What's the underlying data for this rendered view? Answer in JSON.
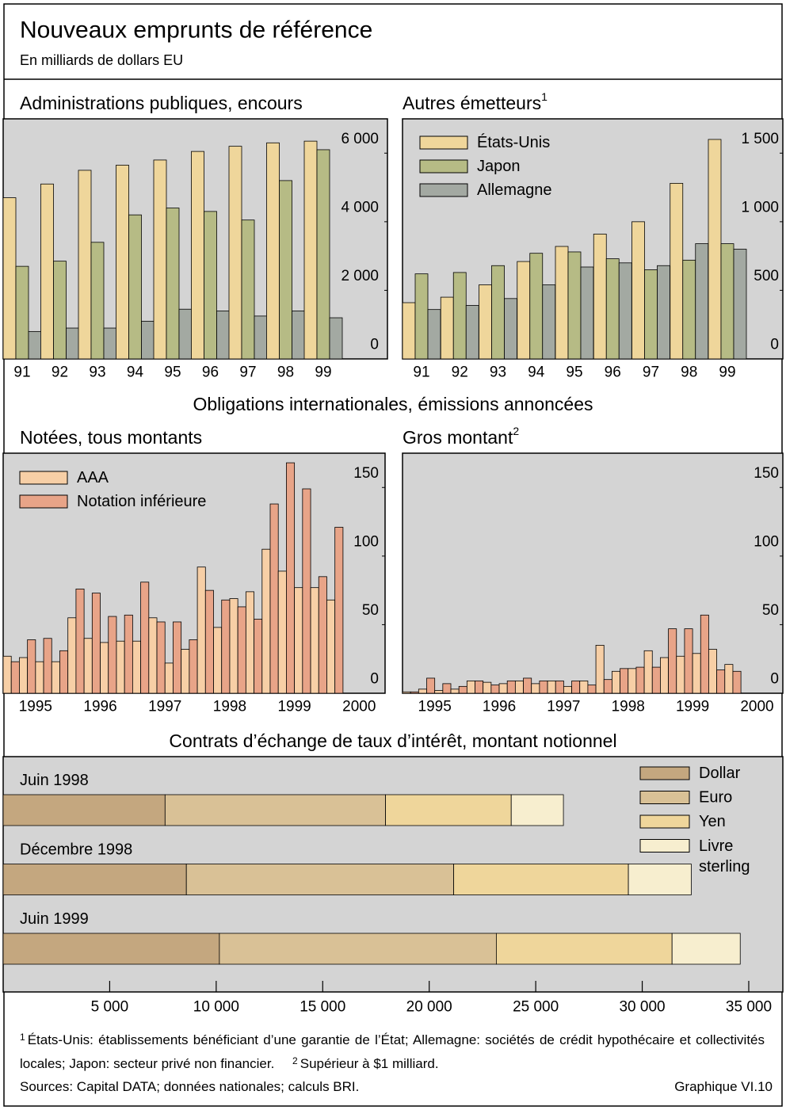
{
  "title": "Nouveaux emprunts de référence",
  "subtitle": "En milliards de dollars EU",
  "section_title": "Obligations internationales, émissions annoncées",
  "notes": [
    {
      "marker": "1",
      "text": "États-Unis: établissements bénéficiant d’une garantie de l’État; Allemagne: sociétés de crédit hypothécaire et collectivités locales; Japon: secteur privé non financier."
    },
    {
      "marker": "2",
      "text": "Supérieur à $1 milliard."
    }
  ],
  "source": "Sources: Capital DATA; données nationales; calculs BRI.",
  "figure_label": "Graphique VI.10",
  "chart_data": [
    {
      "type": "bar",
      "title": "Administrations publiques, encours",
      "categories": [
        "91",
        "92",
        "93",
        "94",
        "95",
        "96",
        "97",
        "98",
        "99"
      ],
      "series": [
        {
          "color": "#efd69b",
          "values": [
            4700,
            5100,
            5500,
            5650,
            5800,
            6050,
            6200,
            6300,
            6350
          ]
        },
        {
          "color": "#b6bb85",
          "values": [
            2700,
            2850,
            3400,
            4200,
            4400,
            4300,
            4050,
            5200,
            6100
          ]
        },
        {
          "color": "#a3a9a2",
          "values": [
            800,
            900,
            900,
            1100,
            1450,
            1400,
            1250,
            1400,
            1200
          ]
        }
      ],
      "ylim": [
        0,
        7000
      ],
      "yticks": [
        0,
        {
          "value": 2000,
          "label": "2 000"
        },
        {
          "value": 4000,
          "label": "4 000"
        },
        {
          "value": 6000,
          "label": "6 000"
        }
      ]
    },
    {
      "type": "bar",
      "title": "Autres émetteurs",
      "note_ref": "1",
      "categories": [
        "91",
        "92",
        "93",
        "94",
        "95",
        "96",
        "97",
        "98",
        "99"
      ],
      "series": [
        {
          "name": "États-Unis",
          "color": "#efd69b",
          "values": [
            410,
            450,
            540,
            710,
            820,
            910,
            1000,
            1280,
            1600
          ]
        },
        {
          "name": "Japon",
          "color": "#b6bb85",
          "values": [
            620,
            630,
            680,
            770,
            780,
            730,
            650,
            720,
            840
          ]
        },
        {
          "name": "Allemagne",
          "color": "#a3a9a2",
          "values": [
            360,
            390,
            440,
            540,
            670,
            700,
            680,
            840,
            800
          ]
        }
      ],
      "ylim": [
        0,
        1750
      ],
      "yticks": [
        0,
        500,
        {
          "value": 1000,
          "label": "1 000"
        },
        {
          "value": 1500,
          "label": "1 500"
        }
      ],
      "legend": "upper left"
    },
    {
      "type": "bar",
      "title": "Notées, tous montants",
      "x": [
        1995,
        1995.25,
        1995.5,
        1995.75,
        1996,
        1996.25,
        1996.5,
        1996.75,
        1997,
        1997.25,
        1997.5,
        1997.75,
        1998,
        1998.25,
        1998.5,
        1998.75,
        1999,
        1999.25,
        1999.5,
        1999.75,
        2000
      ],
      "series": [
        {
          "name": "AAA",
          "color": "#f7cfa6",
          "values": [
            27,
            26,
            23,
            23,
            55,
            40,
            37,
            38,
            38,
            55,
            22,
            32,
            92,
            48,
            69,
            74,
            105,
            89,
            77,
            77,
            68
          ]
        },
        {
          "name": "Notation inférieure",
          "color": "#e8a488",
          "values": [
            23,
            39,
            40,
            31,
            76,
            73,
            56,
            57,
            81,
            52,
            52,
            39,
            75,
            68,
            63,
            54,
            138,
            168,
            149,
            85,
            121
          ]
        }
      ],
      "xlim": [
        1995,
        2000.9
      ],
      "xticks": [
        {
          "value": 1995.5,
          "label": "1995"
        },
        {
          "value": 1996.5,
          "label": "1996"
        },
        {
          "value": 1997.5,
          "label": "1997"
        },
        {
          "value": 1998.5,
          "label": "1998"
        },
        {
          "value": 1999.5,
          "label": "1999"
        },
        {
          "value": 2000.5,
          "label": "2000"
        }
      ],
      "ylim": [
        0,
        175
      ],
      "yticks": [
        0,
        50,
        100,
        150
      ],
      "legend": "upper left"
    },
    {
      "type": "bar",
      "title": "Gros montant",
      "note_ref": "2",
      "x": [
        1995,
        1995.25,
        1995.5,
        1995.75,
        1996,
        1996.25,
        1996.5,
        1996.75,
        1997,
        1997.25,
        1997.5,
        1997.75,
        1998,
        1998.25,
        1998.5,
        1998.75,
        1999,
        1999.25,
        1999.5,
        1999.75,
        2000
      ],
      "series": [
        {
          "color": "#f7cfa6",
          "values": [
            1,
            3,
            2,
            3,
            9,
            8,
            7,
            9,
            7,
            9,
            5,
            9,
            35,
            16,
            18,
            31,
            26,
            27,
            29,
            32,
            21
          ]
        },
        {
          "color": "#e8a488",
          "values": [
            1,
            11,
            7,
            5,
            9,
            6,
            9,
            11,
            9,
            9,
            9,
            6,
            10,
            18,
            19,
            19,
            47,
            47,
            57,
            17,
            16
          ]
        }
      ],
      "xlim": [
        1995,
        2000.9
      ],
      "xticks": [
        {
          "value": 1995.5,
          "label": "1995"
        },
        {
          "value": 1996.5,
          "label": "1996"
        },
        {
          "value": 1997.5,
          "label": "1997"
        },
        {
          "value": 1998.5,
          "label": "1998"
        },
        {
          "value": 1999.5,
          "label": "1999"
        },
        {
          "value": 2000.5,
          "label": "2000"
        }
      ],
      "ylim": [
        0,
        175
      ],
      "yticks": [
        0,
        50,
        100,
        150
      ]
    },
    {
      "type": "barh",
      "stacked": true,
      "title": "Contrats d’échange de taux d’intérêt, montant notionnel",
      "categories": [
        "Juin 1998",
        "Décembre 1998",
        "Juin 1999"
      ],
      "series": [
        {
          "name": "Dollar",
          "color": "#c4a77f",
          "values": [
            7600,
            8600,
            10150
          ]
        },
        {
          "name": "Euro",
          "color": "#d9c196",
          "values": [
            10350,
            12550,
            13000
          ]
        },
        {
          "name": "Yen",
          "color": "#efd69b",
          "values": [
            5900,
            8200,
            8250
          ]
        },
        {
          "name": "Livre sterling",
          "color": "#f7eecf",
          "values": [
            2450,
            2950,
            3200
          ]
        }
      ],
      "xlim": [
        0,
        36600
      ],
      "xticks": [
        {
          "value": 5000,
          "label": "5 000"
        },
        {
          "value": 10000,
          "label": "10 000"
        },
        {
          "value": 15000,
          "label": "15 000"
        },
        {
          "value": 20000,
          "label": "20 000"
        },
        {
          "value": 25000,
          "label": "25 000"
        },
        {
          "value": 30000,
          "label": "30 000"
        },
        {
          "value": 35000,
          "label": "35 000"
        }
      ],
      "legend": "upper right"
    }
  ]
}
